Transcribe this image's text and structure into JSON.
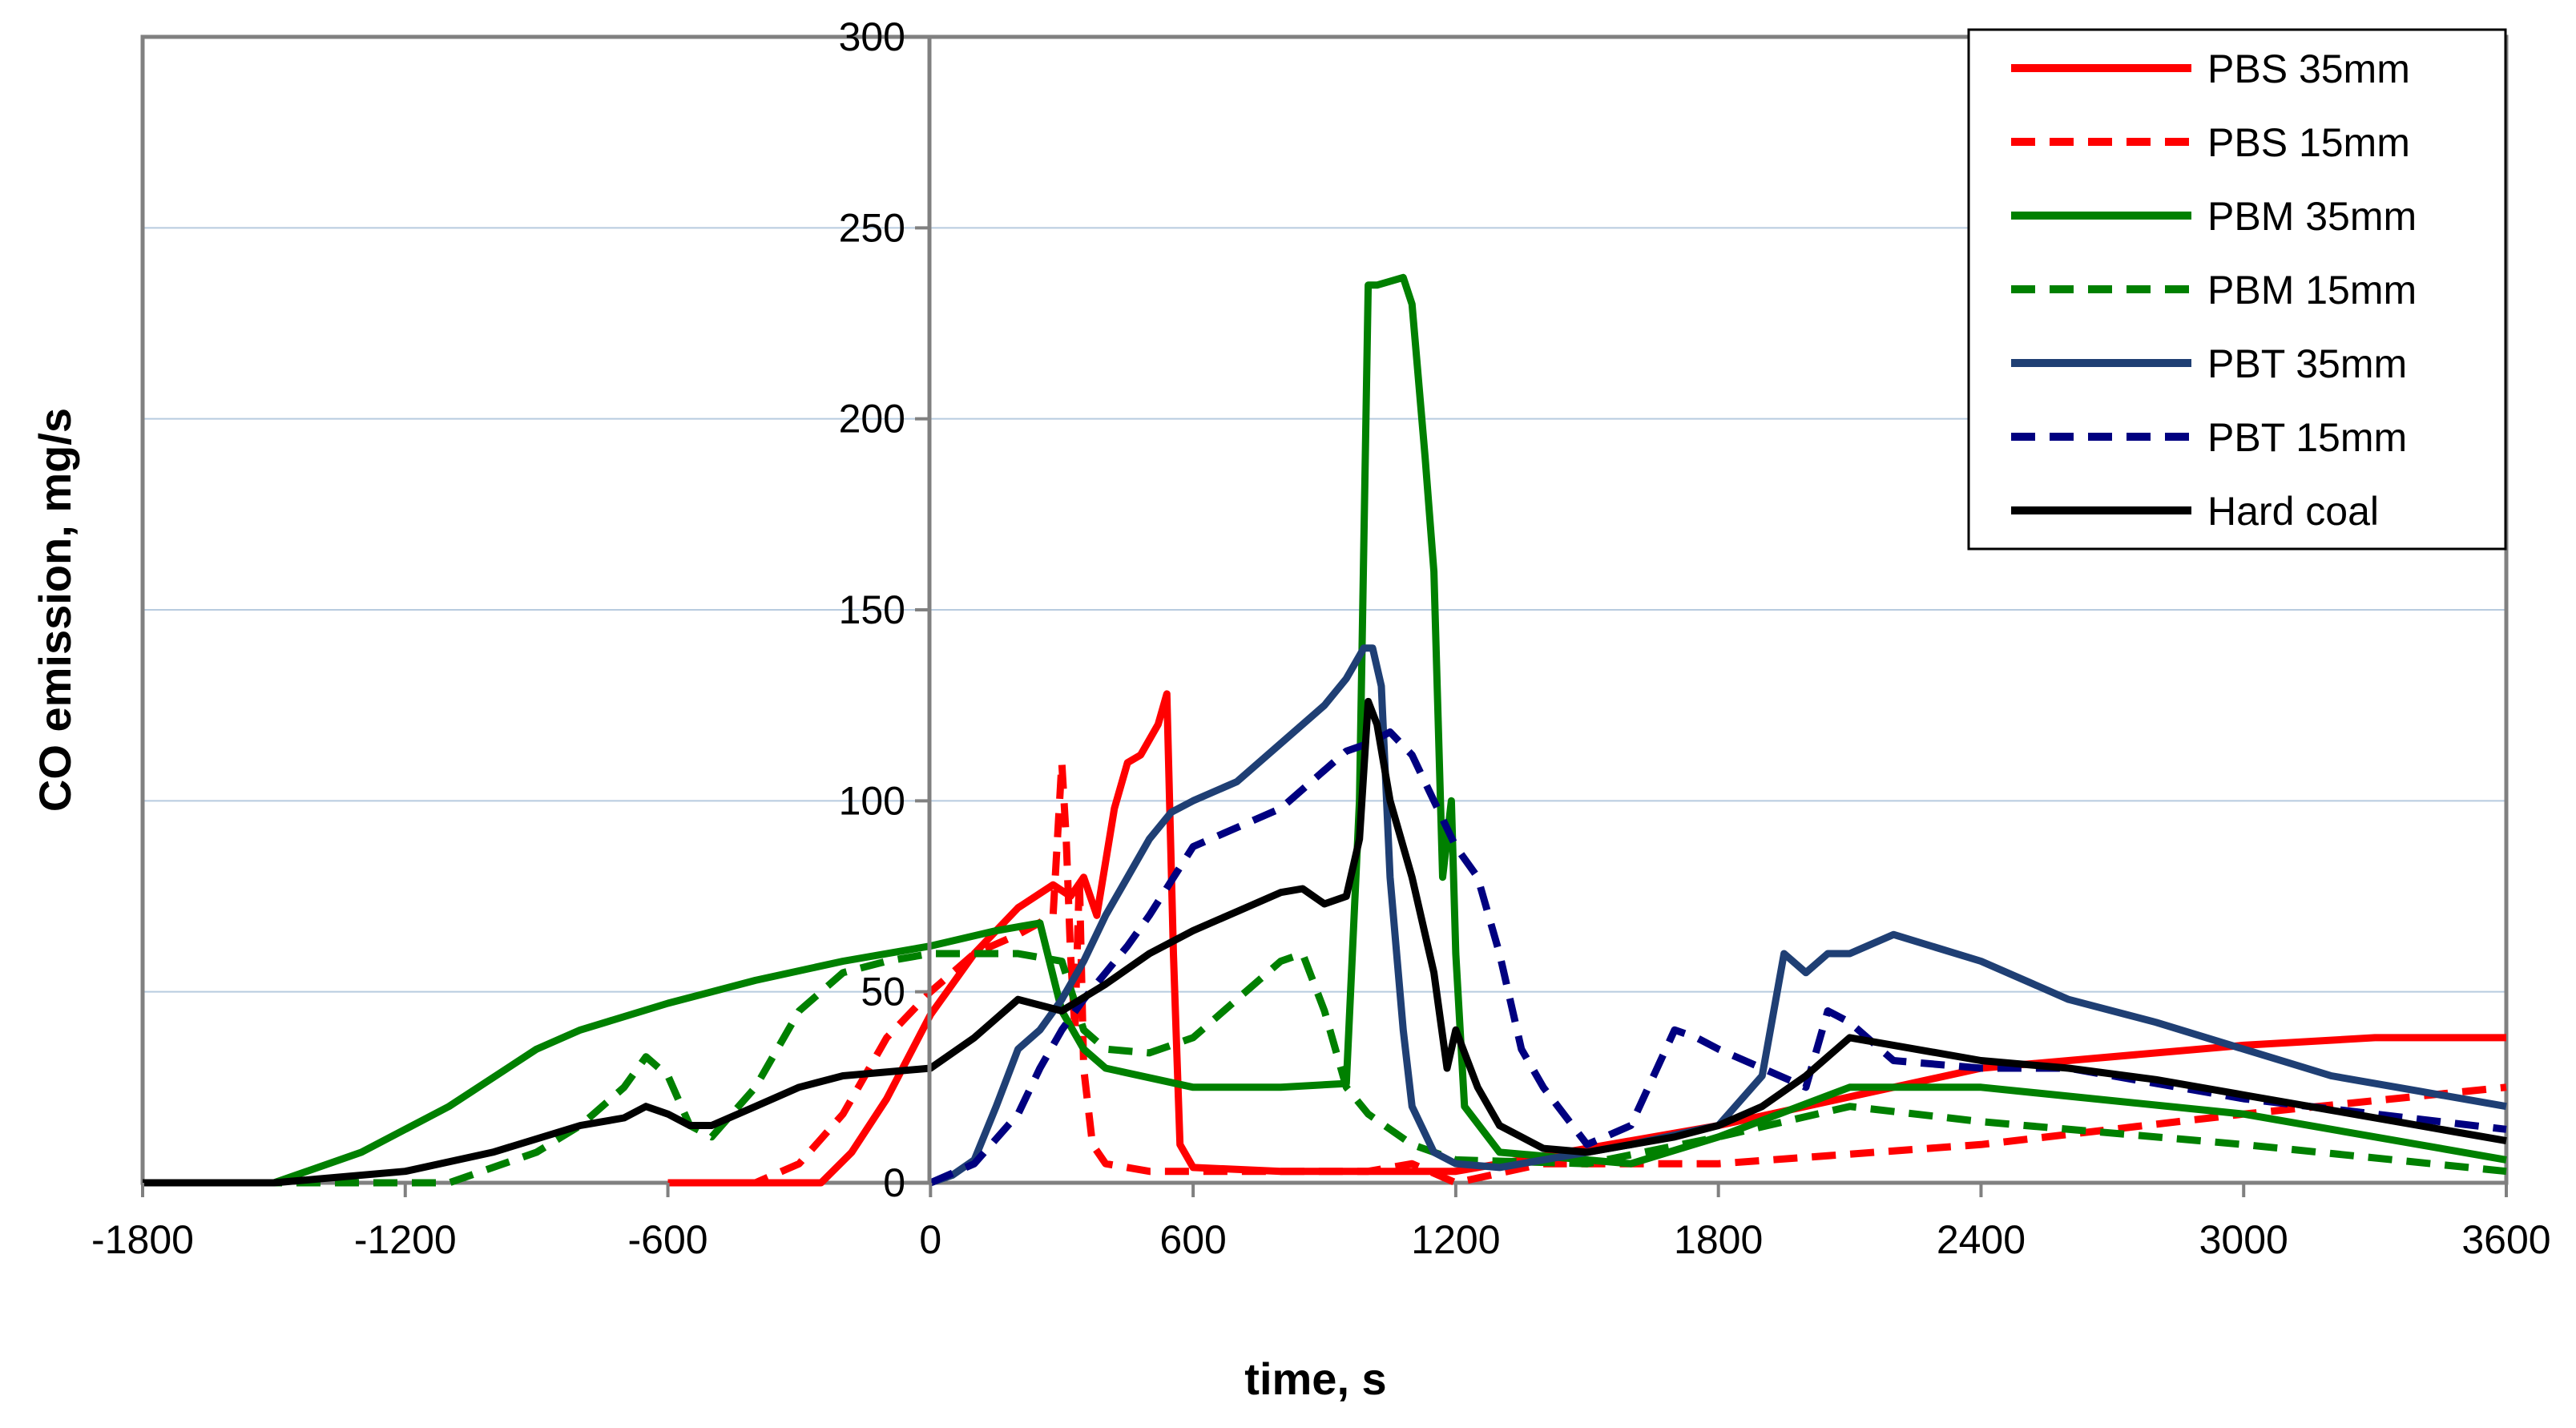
{
  "chart_data": {
    "type": "line",
    "title": "",
    "xlabel": "time, s",
    "ylabel": "CO emission, mg/s",
    "xlim": [
      -1800,
      3600
    ],
    "ylim": [
      0,
      300
    ],
    "x_ticks": [
      -1800,
      -1200,
      -600,
      0,
      600,
      1200,
      1800,
      2400,
      3000,
      3600
    ],
    "x_tick_labels": [
      "-1800",
      "-1200",
      "-600",
      "0",
      "600",
      "1200",
      "1800",
      "2400",
      "3000",
      "3600"
    ],
    "y_ticks": [
      0,
      50,
      100,
      150,
      200,
      250,
      300
    ],
    "y_tick_labels": [
      "0",
      "50",
      "100",
      "150",
      "200",
      "250",
      "300"
    ],
    "grid": true,
    "legend_position": "top-right",
    "series": [
      {
        "name": "PBS 35mm",
        "color": "#ff0000",
        "dash": "solid",
        "x": [
          -600,
          -250,
          -180,
          -100,
          0,
          100,
          200,
          280,
          320,
          350,
          380,
          420,
          450,
          480,
          520,
          540,
          555,
          570,
          600,
          800,
          1200,
          1800,
          2400,
          3000,
          3300,
          3600
        ],
        "y": [
          0,
          0,
          8,
          22,
          44,
          60,
          72,
          78,
          75,
          80,
          70,
          98,
          110,
          112,
          120,
          128,
          60,
          10,
          4,
          3,
          3,
          15,
          30,
          36,
          38,
          38
        ]
      },
      {
        "name": "PBS 15mm",
        "color": "#ff0000",
        "dash": "dashed",
        "x": [
          -600,
          -400,
          -300,
          -200,
          -100,
          0,
          100,
          200,
          280,
          300,
          310,
          320,
          330,
          340,
          350,
          370,
          400,
          500,
          800,
          1000,
          1100,
          1200,
          1400,
          1800,
          2400,
          3000,
          3600
        ],
        "y": [
          0,
          0,
          5,
          18,
          38,
          50,
          60,
          65,
          70,
          110,
          90,
          60,
          40,
          80,
          30,
          10,
          5,
          3,
          3,
          3,
          5,
          0,
          5,
          5,
          10,
          18,
          25
        ]
      },
      {
        "name": "PBM 35mm",
        "color": "#008000",
        "dash": "solid",
        "x": [
          -1800,
          -1500,
          -1300,
          -1100,
          -900,
          -800,
          -600,
          -400,
          -200,
          0,
          150,
          250,
          300,
          350,
          400,
          600,
          800,
          950,
          980,
          1000,
          1020,
          1050,
          1080,
          1100,
          1130,
          1150,
          1170,
          1190,
          1200,
          1220,
          1300,
          1600,
          1800,
          2100,
          2400,
          3000,
          3600
        ],
        "y": [
          0,
          0,
          8,
          20,
          35,
          40,
          47,
          53,
          58,
          62,
          66,
          68,
          45,
          35,
          30,
          25,
          25,
          26,
          100,
          235,
          235,
          236,
          237,
          230,
          190,
          160,
          80,
          100,
          60,
          20,
          8,
          5,
          12,
          25,
          25,
          18,
          6
        ]
      },
      {
        "name": "PBM 15mm",
        "color": "#008000",
        "dash": "dashed",
        "x": [
          -1800,
          -1100,
          -900,
          -800,
          -700,
          -650,
          -600,
          -550,
          -500,
          -400,
          -300,
          -200,
          -100,
          0,
          200,
          300,
          350,
          400,
          500,
          600,
          700,
          800,
          850,
          900,
          950,
          1000,
          1100,
          1200,
          1500,
          1800,
          2100,
          2400,
          3000,
          3600
        ],
        "y": [
          0,
          0,
          8,
          15,
          25,
          33,
          28,
          15,
          12,
          25,
          45,
          55,
          58,
          60,
          60,
          58,
          40,
          35,
          34,
          38,
          48,
          58,
          60,
          45,
          25,
          18,
          10,
          6,
          5,
          12,
          20,
          16,
          10,
          3
        ]
      },
      {
        "name": "PBT 35mm",
        "color": "#1f3f74",
        "dash": "solid",
        "x": [
          0,
          50,
          100,
          150,
          200,
          250,
          300,
          350,
          400,
          450,
          500,
          550,
          600,
          700,
          800,
          900,
          950,
          990,
          1010,
          1030,
          1050,
          1080,
          1100,
          1150,
          1200,
          1300,
          1500,
          1600,
          1800,
          1900,
          1950,
          2000,
          2050,
          2100,
          2200,
          2400,
          2600,
          2800,
          3000,
          3200,
          3400,
          3600
        ],
        "y": [
          0,
          2,
          6,
          20,
          35,
          40,
          48,
          58,
          70,
          80,
          90,
          97,
          100,
          105,
          115,
          125,
          132,
          140,
          140,
          130,
          80,
          40,
          20,
          8,
          5,
          4,
          8,
          10,
          15,
          28,
          60,
          55,
          60,
          60,
          65,
          58,
          48,
          42,
          35,
          28,
          24,
          20
        ]
      },
      {
        "name": "PBT 15mm",
        "color": "#000080",
        "dash": "dashed",
        "x": [
          0,
          100,
          200,
          250,
          300,
          350,
          400,
          450,
          500,
          600,
          700,
          800,
          900,
          950,
          1000,
          1050,
          1100,
          1150,
          1200,
          1250,
          1300,
          1350,
          1400,
          1500,
          1600,
          1700,
          1750,
          1800,
          1900,
          2000,
          2050,
          2100,
          2200,
          2400,
          2600,
          3000,
          3600
        ],
        "y": [
          0,
          5,
          18,
          30,
          40,
          48,
          55,
          62,
          70,
          88,
          93,
          98,
          108,
          113,
          115,
          118,
          112,
          100,
          88,
          80,
          60,
          35,
          25,
          10,
          15,
          40,
          38,
          35,
          30,
          25,
          45,
          42,
          32,
          30,
          30,
          22,
          14
        ]
      },
      {
        "name": "Hard coal",
        "color": "#000000",
        "dash": "solid",
        "x": [
          -1800,
          -1500,
          -1200,
          -1000,
          -800,
          -700,
          -650,
          -600,
          -550,
          -500,
          -400,
          -300,
          -200,
          0,
          100,
          200,
          300,
          400,
          500,
          600,
          700,
          800,
          850,
          900,
          950,
          980,
          1000,
          1020,
          1050,
          1100,
          1150,
          1180,
          1200,
          1250,
          1300,
          1400,
          1500,
          1600,
          1700,
          1800,
          1900,
          2000,
          2050,
          2100,
          2200,
          2400,
          2600,
          2800,
          3000,
          3200,
          3400,
          3600
        ],
        "y": [
          0,
          0,
          3,
          8,
          15,
          17,
          20,
          18,
          15,
          15,
          20,
          25,
          28,
          30,
          38,
          48,
          45,
          52,
          60,
          66,
          71,
          76,
          77,
          73,
          75,
          90,
          126,
          120,
          100,
          80,
          55,
          30,
          40,
          25,
          15,
          9,
          8,
          10,
          12,
          15,
          20,
          28,
          33,
          38,
          36,
          32,
          30,
          27,
          23,
          19,
          15,
          11
        ]
      }
    ]
  }
}
